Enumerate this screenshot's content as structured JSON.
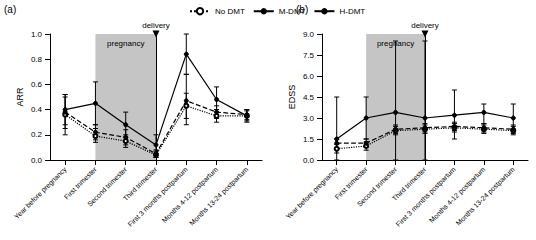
{
  "chart_data": [
    {
      "type": "line",
      "title": "(a)",
      "y_label": "ARR",
      "categories": [
        "Year before pregnancy",
        "First trimester",
        "Second trimester",
        "Third trimester",
        "First 3 months postpartum",
        "Months 4-12 postpartum",
        "Months 13-24 postpartum"
      ],
      "ylim": [
        0,
        1
      ],
      "yticks": [
        {
          "value": 0,
          "label": "0.0"
        },
        0.2,
        0.4,
        0.6,
        0.8,
        {
          "value": 1,
          "label": "1.0"
        }
      ],
      "grid": false,
      "legend": "top",
      "shaded": {
        "label": "pregnancy",
        "from": "First trimester",
        "to": "Third trimester"
      },
      "marker_line": {
        "label": "delivery",
        "at": "Third trimester"
      },
      "series": [
        {
          "name": "No DMT",
          "color": "#000000",
          "line_style": "dotted",
          "marker": "open_circle",
          "values": [
            0.36,
            0.19,
            0.15,
            0.04,
            0.43,
            0.35,
            0.35
          ],
          "error_low": [
            0.2,
            0.14,
            0.1,
            0.02,
            0.33,
            0.3,
            0.31
          ],
          "error_high": [
            0.52,
            0.25,
            0.2,
            0.07,
            0.53,
            0.4,
            0.39
          ]
        },
        {
          "name": "M-DMT",
          "color": "#000000",
          "line_style": "dashed",
          "marker": "circle",
          "values": [
            0.38,
            0.22,
            0.18,
            0.05,
            0.47,
            0.38,
            0.36
          ],
          "error_low": [
            0.25,
            0.16,
            0.12,
            0.02,
            0.28,
            0.33,
            0.32
          ],
          "error_high": [
            0.5,
            0.28,
            0.24,
            0.08,
            0.68,
            0.43,
            0.4
          ]
        },
        {
          "name": "H-DMT",
          "color": "#000000",
          "line_style": "solid",
          "marker": "circle",
          "values": [
            0.4,
            0.45,
            0.28,
            0.12,
            0.84,
            0.48,
            0.35
          ],
          "error_low": [
            0.28,
            0.28,
            0.18,
            0.05,
            0.68,
            0.4,
            0.3
          ],
          "error_high": [
            0.52,
            0.62,
            0.38,
            0.2,
            1.0,
            0.58,
            0.4
          ]
        }
      ]
    },
    {
      "type": "line",
      "title": "(b)",
      "y_label": "EDSS",
      "categories": [
        "Year before pregnancy",
        "First trimester",
        "Second trimester",
        "Third trimester",
        "First 3 months postpartum",
        "Months 4-12 postpartum",
        "Months 13-24 postpartum"
      ],
      "ylim": [
        0,
        9
      ],
      "yticks": [
        {
          "value": 0,
          "label": "0.0"
        },
        1.5,
        {
          "value": 3,
          "label": "3.0"
        },
        4.5,
        {
          "value": 6,
          "label": "6.0"
        },
        7.5,
        {
          "value": 9,
          "label": "9.0"
        }
      ],
      "grid": false,
      "shaded": {
        "label": "pregnancy",
        "from": "First trimester",
        "to": "Third trimester"
      },
      "marker_line": {
        "label": "delivery",
        "at": "Third trimester"
      },
      "series": [
        {
          "name": "No DMT",
          "color": "#000000",
          "line_style": "dotted",
          "marker": "open_circle",
          "values": [
            0.8,
            1.0,
            2.1,
            2.2,
            2.3,
            2.2,
            2.1
          ],
          "error_low": [
            0.5,
            0.7,
            1.8,
            1.9,
            2.0,
            1.9,
            1.8
          ],
          "error_high": [
            1.1,
            1.3,
            2.4,
            2.5,
            2.6,
            2.5,
            2.4
          ]
        },
        {
          "name": "M-DMT",
          "color": "#000000",
          "line_style": "dashed",
          "marker": "circle",
          "values": [
            1.2,
            1.2,
            2.2,
            2.3,
            2.4,
            2.3,
            2.2
          ],
          "error_low": [
            0.9,
            0.9,
            1.9,
            2.0,
            2.1,
            2.0,
            1.9
          ],
          "error_high": [
            1.5,
            1.5,
            2.5,
            2.6,
            2.7,
            2.6,
            2.5
          ]
        },
        {
          "name": "H-DMT",
          "color": "#000000",
          "line_style": "solid",
          "marker": "circle",
          "values": [
            1.5,
            3.0,
            3.4,
            3.0,
            3.2,
            3.4,
            3.0
          ],
          "error_low": [
            0,
            1.5,
            0,
            0,
            1.5,
            2.6,
            2.0
          ],
          "error_high": [
            4.5,
            4.5,
            8.5,
            8.5,
            5.0,
            4.0,
            4.0
          ]
        }
      ]
    }
  ]
}
